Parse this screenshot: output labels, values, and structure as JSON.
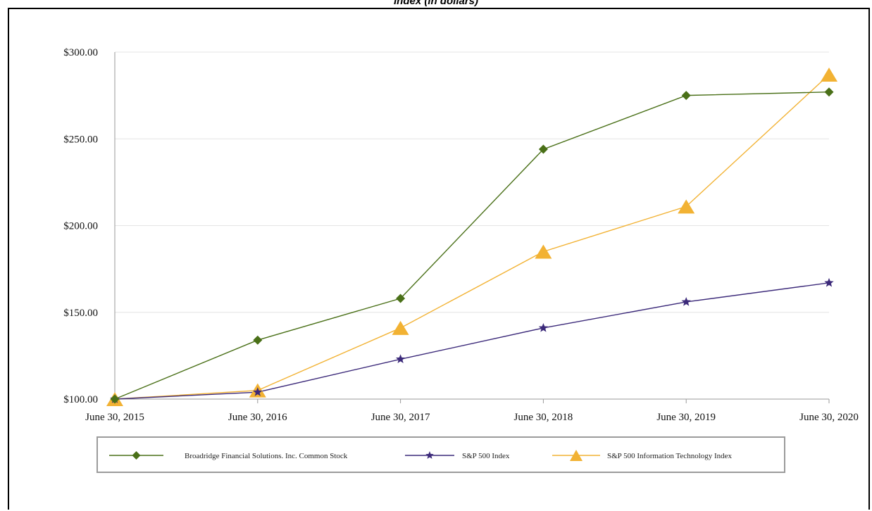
{
  "chart_data": {
    "type": "line",
    "title": "Index (in dollars)",
    "xlabel": "",
    "ylabel": "",
    "categories": [
      "June 30, 2015",
      "June 30, 2016",
      "June 30, 2017",
      "June 30, 2018",
      "June 30, 2019",
      "June 30, 2020"
    ],
    "ylim": [
      100,
      300
    ],
    "yticks": [
      100,
      150,
      200,
      250,
      300
    ],
    "ytick_labels": [
      "$100.00",
      "$150.00",
      "$200.00",
      "$250.00",
      "$300.00"
    ],
    "grid": true,
    "legend_position": "bottom",
    "series": [
      {
        "name": "Broadridge Financial Solutions. Inc. Common Stock",
        "values": [
          100,
          134,
          158,
          244,
          275,
          277
        ],
        "color": "#4a7018",
        "marker": "diamond"
      },
      {
        "name": "S&P 500 Index",
        "values": [
          100,
          104,
          123,
          141,
          156,
          167
        ],
        "color": "#3c2a7a",
        "marker": "star"
      },
      {
        "name": "S&P 500 Information Technology Index",
        "values": [
          100,
          105,
          141,
          185,
          211,
          287
        ],
        "color": "#f2b233",
        "marker": "triangle"
      }
    ]
  }
}
